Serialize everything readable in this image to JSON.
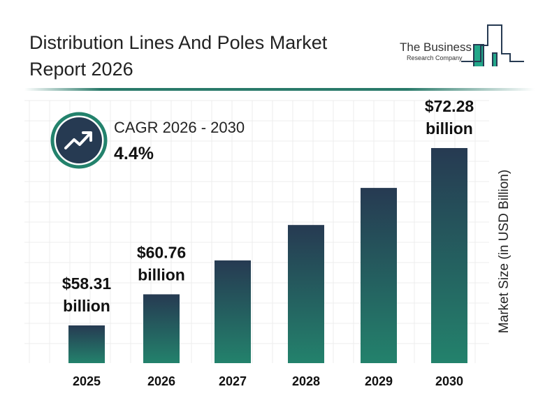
{
  "title": "Distribution Lines And Poles Market Report 2026",
  "logo": {
    "line1": "The Business",
    "line2": "Research Company"
  },
  "cagr": {
    "label": "CAGR 2026 - 2030",
    "value": "4.4%",
    "icon": "trend-up-icon"
  },
  "colors": {
    "bar_top": "#263a52",
    "bar_bottom": "#23826c",
    "accent": "#2a7a6a"
  },
  "chart_data": {
    "type": "bar",
    "categories": [
      "2025",
      "2026",
      "2027",
      "2028",
      "2029",
      "2030"
    ],
    "values": [
      58.31,
      60.76,
      63.43,
      66.22,
      69.14,
      72.28
    ],
    "data_labels": [
      {
        "index": 0,
        "amount": "$58.31",
        "unit": "billion"
      },
      {
        "index": 1,
        "amount": "$60.76",
        "unit": "billion"
      },
      {
        "index": 5,
        "amount": "$72.28",
        "unit": "billion"
      }
    ],
    "ylabel": "Market Size (in USD Billion)",
    "grid": true
  }
}
